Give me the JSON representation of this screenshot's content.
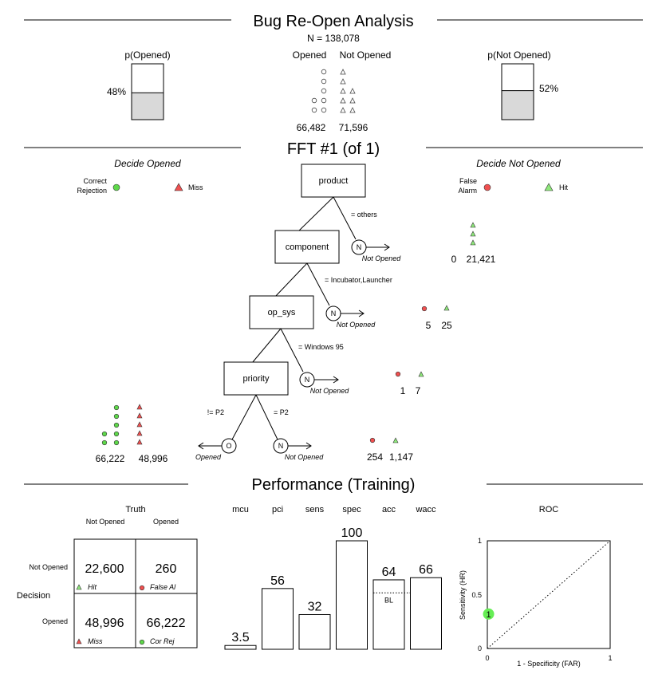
{
  "title": "Bug Re-Open Analysis",
  "n_label": "N = 138,078",
  "header": {
    "p_opened_label": "p(Opened)",
    "p_opened_value": "48%",
    "p_opened_frac": 0.48,
    "p_not_opened_label": "p(Not Opened)",
    "p_not_opened_value": "52%",
    "p_not_opened_frac": 0.52,
    "opened_label": "Opened",
    "not_opened_label": "Not Opened",
    "opened_count": "66,482",
    "not_opened_count": "71,596"
  },
  "fft": {
    "title": "FFT #1 (of 1)",
    "decide_opened": "Decide Opened",
    "decide_not_opened": "Decide Not Opened",
    "legend": {
      "correct_rejection_1": "Correct",
      "correct_rejection_2": "Rejection",
      "miss": "Miss",
      "false_alarm_1": "False",
      "false_alarm_2": "Alarm",
      "hit": "Hit"
    },
    "nodes": [
      {
        "cue": "product",
        "condition": "= others",
        "exit_symbol": "N",
        "exit_label": "Not Opened",
        "left_count": "0",
        "right_count": "21,421",
        "circles": 0,
        "triangles": 3
      },
      {
        "cue": "component",
        "condition": "= Incubator,Launcher",
        "exit_symbol": "N",
        "exit_label": "Not Opened",
        "left_count": "5",
        "right_count": "25",
        "circles": 1,
        "triangles": 1
      },
      {
        "cue": "op_sys",
        "condition": "= Windows 95",
        "exit_symbol": "N",
        "exit_label": "Not Opened",
        "left_count": "1",
        "right_count": "7",
        "circles": 1,
        "triangles": 1
      },
      {
        "cue": "priority",
        "condition": "= P2",
        "exit_symbol": "N",
        "exit_label": "Not Opened",
        "left_count": "254",
        "right_count": "1,147",
        "circles": 1,
        "triangles": 1
      }
    ],
    "final_left": {
      "condition": "!= P2",
      "exit_symbol": "O",
      "exit_label": "Opened",
      "cor_rej_count": "66,222",
      "miss_count": "48,996"
    }
  },
  "performance": {
    "title": "Performance (Training)",
    "truth_label": "Truth",
    "decision_label": "Decision",
    "col_not_opened": "Not Opened",
    "col_opened": "Opened",
    "row_not_opened": "Not Opened",
    "row_opened": "Opened",
    "cells": {
      "hit": "22,600",
      "hit_label": "Hit",
      "false_alarm": "260",
      "false_alarm_label": "False Al",
      "miss": "48,996",
      "miss_label": "Miss",
      "cor_rej": "66,222",
      "cor_rej_label": "Cor Rej"
    },
    "bl_label": "BL",
    "acc_baseline": 52
  },
  "chart_data": [
    {
      "type": "bar",
      "categories": [
        "mcu",
        "pci",
        "sens",
        "spec",
        "acc",
        "wacc"
      ],
      "values": [
        3.5,
        56,
        32,
        100,
        64,
        66
      ],
      "labels": [
        "3.5",
        "56",
        "32",
        "100",
        "64",
        "66"
      ],
      "ylim": [
        0,
        100
      ]
    },
    {
      "type": "scatter",
      "title": "ROC",
      "xlabel": "1 - Specificity (FAR)",
      "ylabel": "Sensitivity (HR)",
      "xlim": [
        0,
        1
      ],
      "ylim": [
        0,
        1
      ],
      "x_ticks": [
        "0",
        "1"
      ],
      "y_ticks": [
        "0",
        "0.5",
        "1"
      ],
      "points": [
        {
          "x": 0.01,
          "y": 0.32,
          "label": "1"
        }
      ],
      "point_color": "#66ee55"
    }
  ],
  "colors": {
    "green": "#5ed84a",
    "red": "#f05050",
    "gray_fill": "#d9d9d9",
    "green_tri": "#8ee87a"
  }
}
